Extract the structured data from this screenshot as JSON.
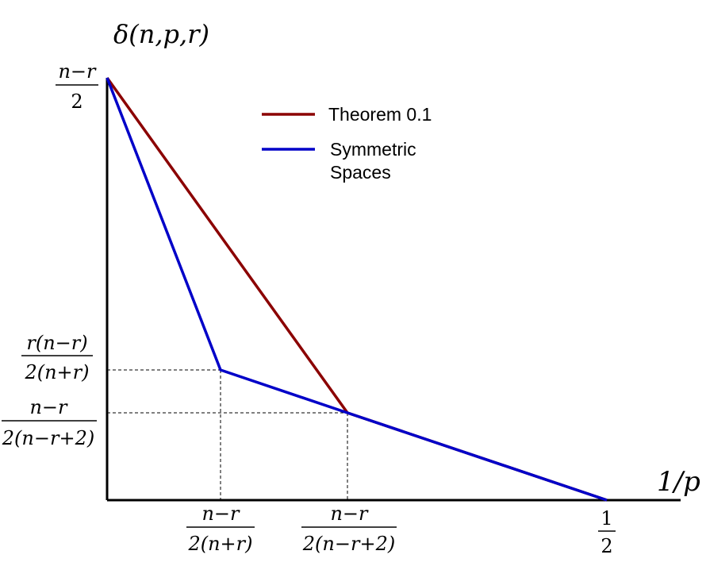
{
  "chart_data": {
    "type": "line",
    "title": "",
    "ylabel": "δ(n,p,r)",
    "xlabel": "1/p",
    "x_ticks": [
      {
        "num": "n−r",
        "den": "2(n+r)"
      },
      {
        "num": "n−r",
        "den": "2(n−r+2)"
      },
      {
        "num": "1",
        "den": "2"
      }
    ],
    "y_ticks": [
      {
        "num": "n−r",
        "den": "2"
      },
      {
        "num": "r(n−r)",
        "den": "2(n+r)"
      },
      {
        "num": "n−r",
        "den": "2(n−r+2)"
      }
    ],
    "series": [
      {
        "name": "Theorem 0.1",
        "color": "#8b0000",
        "points": [
          [
            0,
            2
          ],
          [
            1,
            0.4
          ],
          [
            2,
            0
          ]
        ]
      },
      {
        "name": "Symmetric Spaces",
        "name_lines": [
          "Symmetric",
          "Spaces"
        ],
        "color": "#0000c8",
        "points": [
          [
            0,
            2
          ],
          [
            0.45,
            0.6
          ],
          [
            1,
            0.4
          ],
          [
            2,
            0
          ]
        ]
      }
    ],
    "legend": "top-center",
    "grid": false
  }
}
